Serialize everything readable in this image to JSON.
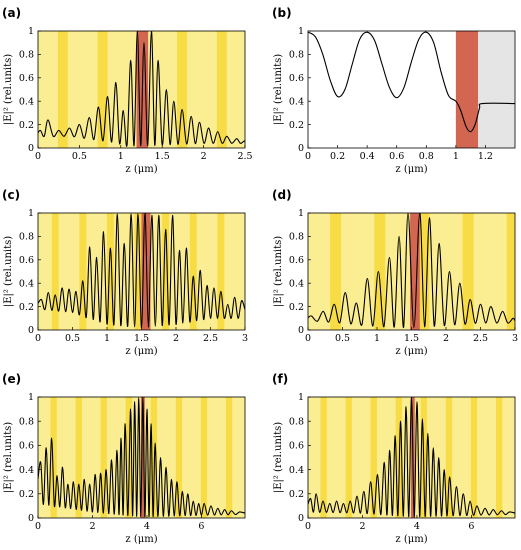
{
  "chart_data": [
    {
      "panel": "(a)",
      "type": "line",
      "xlabel": "z (μm)",
      "ylabel": "|E|² (rel.units)",
      "xlim": [
        0,
        2.5
      ],
      "ylim": [
        0,
        1
      ],
      "xticks": [
        "0",
        "0.5",
        "1",
        "1.5",
        "2",
        "2.5"
      ],
      "yticks": [
        "0",
        "0.2",
        "0.4",
        "0.6",
        "0.8",
        "1"
      ],
      "background": "layered",
      "layer_period": 0.24,
      "highlight": [
        1.19,
        1.33
      ],
      "peaks": [
        [
          0.03,
          0.15
        ],
        [
          0.12,
          0.24
        ],
        [
          0.25,
          0.15
        ],
        [
          0.38,
          0.17
        ],
        [
          0.5,
          0.2
        ],
        [
          0.62,
          0.26
        ],
        [
          0.73,
          0.35
        ],
        [
          0.84,
          0.44
        ],
        [
          0.94,
          0.56
        ],
        [
          1.03,
          0.32
        ],
        [
          1.12,
          0.75
        ],
        [
          1.2,
          1.0
        ],
        [
          1.28,
          0.9
        ],
        [
          1.37,
          1.0
        ],
        [
          1.45,
          0.75
        ],
        [
          1.55,
          0.5
        ],
        [
          1.64,
          0.4
        ],
        [
          1.74,
          0.33
        ],
        [
          1.85,
          0.27
        ],
        [
          1.95,
          0.22
        ],
        [
          2.06,
          0.17
        ],
        [
          2.17,
          0.14
        ],
        [
          2.28,
          0.1
        ],
        [
          2.4,
          0.08
        ],
        [
          2.49,
          0.06
        ]
      ],
      "valley_floor": [
        [
          0,
          0.1
        ],
        [
          0.4,
          0.1
        ],
        [
          0.9,
          0.05
        ],
        [
          1.1,
          0.02
        ],
        [
          1.3,
          0.02
        ],
        [
          1.6,
          0.03
        ],
        [
          2.0,
          0.04
        ],
        [
          2.5,
          0.04
        ]
      ]
    },
    {
      "panel": "(b)",
      "type": "line",
      "xlabel": "z (μm)",
      "ylabel": "|E|² (rel.units)",
      "xlim": [
        0,
        1.4
      ],
      "ylim": [
        0,
        1
      ],
      "xticks": [
        "0",
        "0.2",
        "0.4",
        "0.6",
        "0.8",
        "1",
        "1.2"
      ],
      "yticks": [
        "0",
        "0.2",
        "0.4",
        "0.6",
        "0.8",
        "1"
      ],
      "background": "regions",
      "highlight": [
        1.0,
        1.15
      ],
      "shaded": [
        1.15,
        1.4
      ],
      "points": [
        [
          0,
          0.99
        ],
        [
          0.05,
          0.95
        ],
        [
          0.1,
          0.8
        ],
        [
          0.15,
          0.58
        ],
        [
          0.2,
          0.44
        ],
        [
          0.25,
          0.5
        ],
        [
          0.3,
          0.72
        ],
        [
          0.35,
          0.93
        ],
        [
          0.4,
          0.99
        ],
        [
          0.45,
          0.92
        ],
        [
          0.5,
          0.72
        ],
        [
          0.55,
          0.52
        ],
        [
          0.6,
          0.43
        ],
        [
          0.65,
          0.52
        ],
        [
          0.7,
          0.74
        ],
        [
          0.75,
          0.93
        ],
        [
          0.8,
          0.99
        ],
        [
          0.85,
          0.9
        ],
        [
          0.9,
          0.65
        ],
        [
          0.95,
          0.45
        ],
        [
          1.0,
          0.4
        ],
        [
          1.03,
          0.33
        ],
        [
          1.07,
          0.18
        ],
        [
          1.1,
          0.14
        ],
        [
          1.13,
          0.2
        ],
        [
          1.16,
          0.34
        ],
        [
          1.18,
          0.38
        ],
        [
          1.4,
          0.38
        ]
      ]
    },
    {
      "panel": "(c)",
      "type": "line",
      "xlabel": "z (μm)",
      "ylabel": "|E|² (rel.units)",
      "xlim": [
        0,
        3
      ],
      "ylim": [
        0,
        1
      ],
      "xticks": [
        "0",
        "0.5",
        "1",
        "1.5",
        "2",
        "2.5",
        "3"
      ],
      "yticks": [
        "0",
        "0.2",
        "0.4",
        "0.6",
        "0.8",
        "1"
      ],
      "background": "layered",
      "layer_period": 0.2,
      "highlight": [
        1.5,
        1.63
      ],
      "peaks": [
        [
          0.05,
          0.26
        ],
        [
          0.15,
          0.32
        ],
        [
          0.25,
          0.3
        ],
        [
          0.35,
          0.36
        ],
        [
          0.45,
          0.35
        ],
        [
          0.55,
          0.33
        ],
        [
          0.65,
          0.42
        ],
        [
          0.75,
          0.71
        ],
        [
          0.85,
          0.62
        ],
        [
          0.95,
          0.84
        ],
        [
          1.05,
          0.7
        ],
        [
          1.15,
          0.99
        ],
        [
          1.25,
          0.74
        ],
        [
          1.35,
          0.99
        ],
        [
          1.45,
          0.99
        ],
        [
          1.55,
          1.0
        ],
        [
          1.65,
          0.98
        ],
        [
          1.75,
          0.98
        ],
        [
          1.85,
          0.86
        ],
        [
          1.95,
          0.98
        ],
        [
          2.05,
          0.68
        ],
        [
          2.15,
          0.7
        ],
        [
          2.25,
          0.46
        ],
        [
          2.35,
          0.51
        ],
        [
          2.45,
          0.38
        ],
        [
          2.55,
          0.36
        ],
        [
          2.65,
          0.33
        ],
        [
          2.75,
          0.22
        ],
        [
          2.85,
          0.28
        ],
        [
          2.95,
          0.25
        ]
      ],
      "valley_floor": [
        [
          0,
          0.18
        ],
        [
          0.5,
          0.15
        ],
        [
          1.0,
          0.05
        ],
        [
          1.5,
          0.02
        ],
        [
          2.0,
          0.05
        ],
        [
          2.5,
          0.1
        ],
        [
          3.0,
          0.1
        ]
      ]
    },
    {
      "panel": "(d)",
      "type": "line",
      "xlabel": "z (μm)",
      "ylabel": "|E|² (rel.units)",
      "xlim": [
        0,
        3
      ],
      "ylim": [
        0,
        1
      ],
      "xticks": [
        "0",
        "0.5",
        "1",
        "1.5",
        "2",
        "2.5",
        "3"
      ],
      "yticks": [
        "0",
        "0.2",
        "0.4",
        "0.6",
        "0.8",
        "1"
      ],
      "background": "layered",
      "layer_period": 0.32,
      "highlight": [
        1.48,
        1.62
      ],
      "peaks": [
        [
          0.05,
          0.12
        ],
        [
          0.22,
          0.16
        ],
        [
          0.38,
          0.22
        ],
        [
          0.54,
          0.32
        ],
        [
          0.7,
          0.23
        ],
        [
          0.86,
          0.44
        ],
        [
          1.02,
          0.5
        ],
        [
          1.18,
          0.62
        ],
        [
          1.32,
          0.8
        ],
        [
          1.45,
          1.0
        ],
        [
          1.62,
          1.0
        ],
        [
          1.76,
          0.96
        ],
        [
          1.9,
          0.74
        ],
        [
          2.05,
          0.5
        ],
        [
          2.2,
          0.4
        ],
        [
          2.35,
          0.26
        ],
        [
          2.5,
          0.22
        ],
        [
          2.65,
          0.2
        ],
        [
          2.82,
          0.16
        ],
        [
          2.97,
          0.1
        ]
      ],
      "valley_floor": [
        [
          0,
          0.08
        ],
        [
          0.5,
          0.06
        ],
        [
          1.0,
          0.03
        ],
        [
          1.5,
          0.02
        ],
        [
          2.0,
          0.04
        ],
        [
          2.5,
          0.06
        ],
        [
          3.0,
          0.06
        ]
      ]
    },
    {
      "panel": "(e)",
      "type": "line",
      "xlabel": "z (μm)",
      "ylabel": "|E|² (rel.units)",
      "xlim": [
        0,
        7.6
      ],
      "ylim": [
        0,
        1
      ],
      "xticks": [
        "0",
        "2",
        "4",
        "6"
      ],
      "yticks": [
        "0",
        "0.2",
        "0.4",
        "0.6",
        "0.8",
        "1"
      ],
      "background": "layered",
      "layer_period": 0.46,
      "highlight": [
        3.78,
        3.92
      ],
      "peaks": [
        [
          0.1,
          0.46
        ],
        [
          0.3,
          0.58
        ],
        [
          0.5,
          0.66
        ],
        [
          0.7,
          0.35
        ],
        [
          0.9,
          0.42
        ],
        [
          1.1,
          0.28
        ],
        [
          1.3,
          0.3
        ],
        [
          1.5,
          0.28
        ],
        [
          1.7,
          0.32
        ],
        [
          1.9,
          0.28
        ],
        [
          2.1,
          0.36
        ],
        [
          2.3,
          0.37
        ],
        [
          2.5,
          0.4
        ],
        [
          2.7,
          0.48
        ],
        [
          2.9,
          0.56
        ],
        [
          3.05,
          0.66
        ],
        [
          3.2,
          0.78
        ],
        [
          3.4,
          0.9
        ],
        [
          3.55,
          0.96
        ],
        [
          3.7,
          0.99
        ],
        [
          3.85,
          1.0
        ],
        [
          4.0,
          0.9
        ],
        [
          4.15,
          0.78
        ],
        [
          4.3,
          0.62
        ],
        [
          4.5,
          0.5
        ],
        [
          4.7,
          0.42
        ],
        [
          4.9,
          0.32
        ],
        [
          5.1,
          0.3
        ],
        [
          5.3,
          0.22
        ],
        [
          5.5,
          0.2
        ],
        [
          5.7,
          0.14
        ],
        [
          5.9,
          0.12
        ],
        [
          6.1,
          0.12
        ],
        [
          6.35,
          0.1
        ],
        [
          6.6,
          0.08
        ],
        [
          6.85,
          0.07
        ],
        [
          7.1,
          0.06
        ],
        [
          7.4,
          0.05
        ]
      ],
      "valley_floor": [
        [
          0,
          0.12
        ],
        [
          2,
          0.05
        ],
        [
          3.8,
          0.01
        ],
        [
          5.5,
          0.02
        ],
        [
          7.6,
          0.03
        ]
      ]
    },
    {
      "panel": "(f)",
      "type": "line",
      "xlabel": "z (μm)",
      "ylabel": "|E|² (rel.units)",
      "xlim": [
        0,
        7.6
      ],
      "ylim": [
        0,
        1
      ],
      "xticks": [
        "0",
        "2",
        "4",
        "6"
      ],
      "yticks": [
        "0",
        "0.2",
        "0.4",
        "0.6",
        "0.8",
        "1"
      ],
      "background": "layered",
      "layer_period": 0.46,
      "highlight": [
        3.78,
        3.92
      ],
      "peaks": [
        [
          0.1,
          0.16
        ],
        [
          0.3,
          0.2
        ],
        [
          0.55,
          0.14
        ],
        [
          0.8,
          0.12
        ],
        [
          1.05,
          0.14
        ],
        [
          1.3,
          0.12
        ],
        [
          1.55,
          0.14
        ],
        [
          1.8,
          0.18
        ],
        [
          2.05,
          0.22
        ],
        [
          2.3,
          0.3
        ],
        [
          2.55,
          0.36
        ],
        [
          2.8,
          0.46
        ],
        [
          3.0,
          0.56
        ],
        [
          3.2,
          0.68
        ],
        [
          3.4,
          0.8
        ],
        [
          3.6,
          0.92
        ],
        [
          3.8,
          1.0
        ],
        [
          4.0,
          0.96
        ],
        [
          4.2,
          0.82
        ],
        [
          4.4,
          0.7
        ],
        [
          4.6,
          0.58
        ],
        [
          4.8,
          0.5
        ],
        [
          5.0,
          0.4
        ],
        [
          5.2,
          0.34
        ],
        [
          5.45,
          0.26
        ],
        [
          5.7,
          0.2
        ],
        [
          5.95,
          0.14
        ],
        [
          6.2,
          0.1
        ],
        [
          6.5,
          0.08
        ],
        [
          6.8,
          0.07
        ],
        [
          7.1,
          0.06
        ],
        [
          7.4,
          0.05
        ]
      ],
      "valley_floor": [
        [
          0,
          0.05
        ],
        [
          2,
          0.04
        ],
        [
          3.8,
          0.01
        ],
        [
          5.5,
          0.02
        ],
        [
          7.6,
          0.03
        ]
      ]
    }
  ],
  "colors": {
    "layer_light": "#fbee92",
    "layer_dark": "#f7dc45",
    "highlight": "#d26650",
    "substrate": "#e5e5e5",
    "curve": "#000000"
  }
}
